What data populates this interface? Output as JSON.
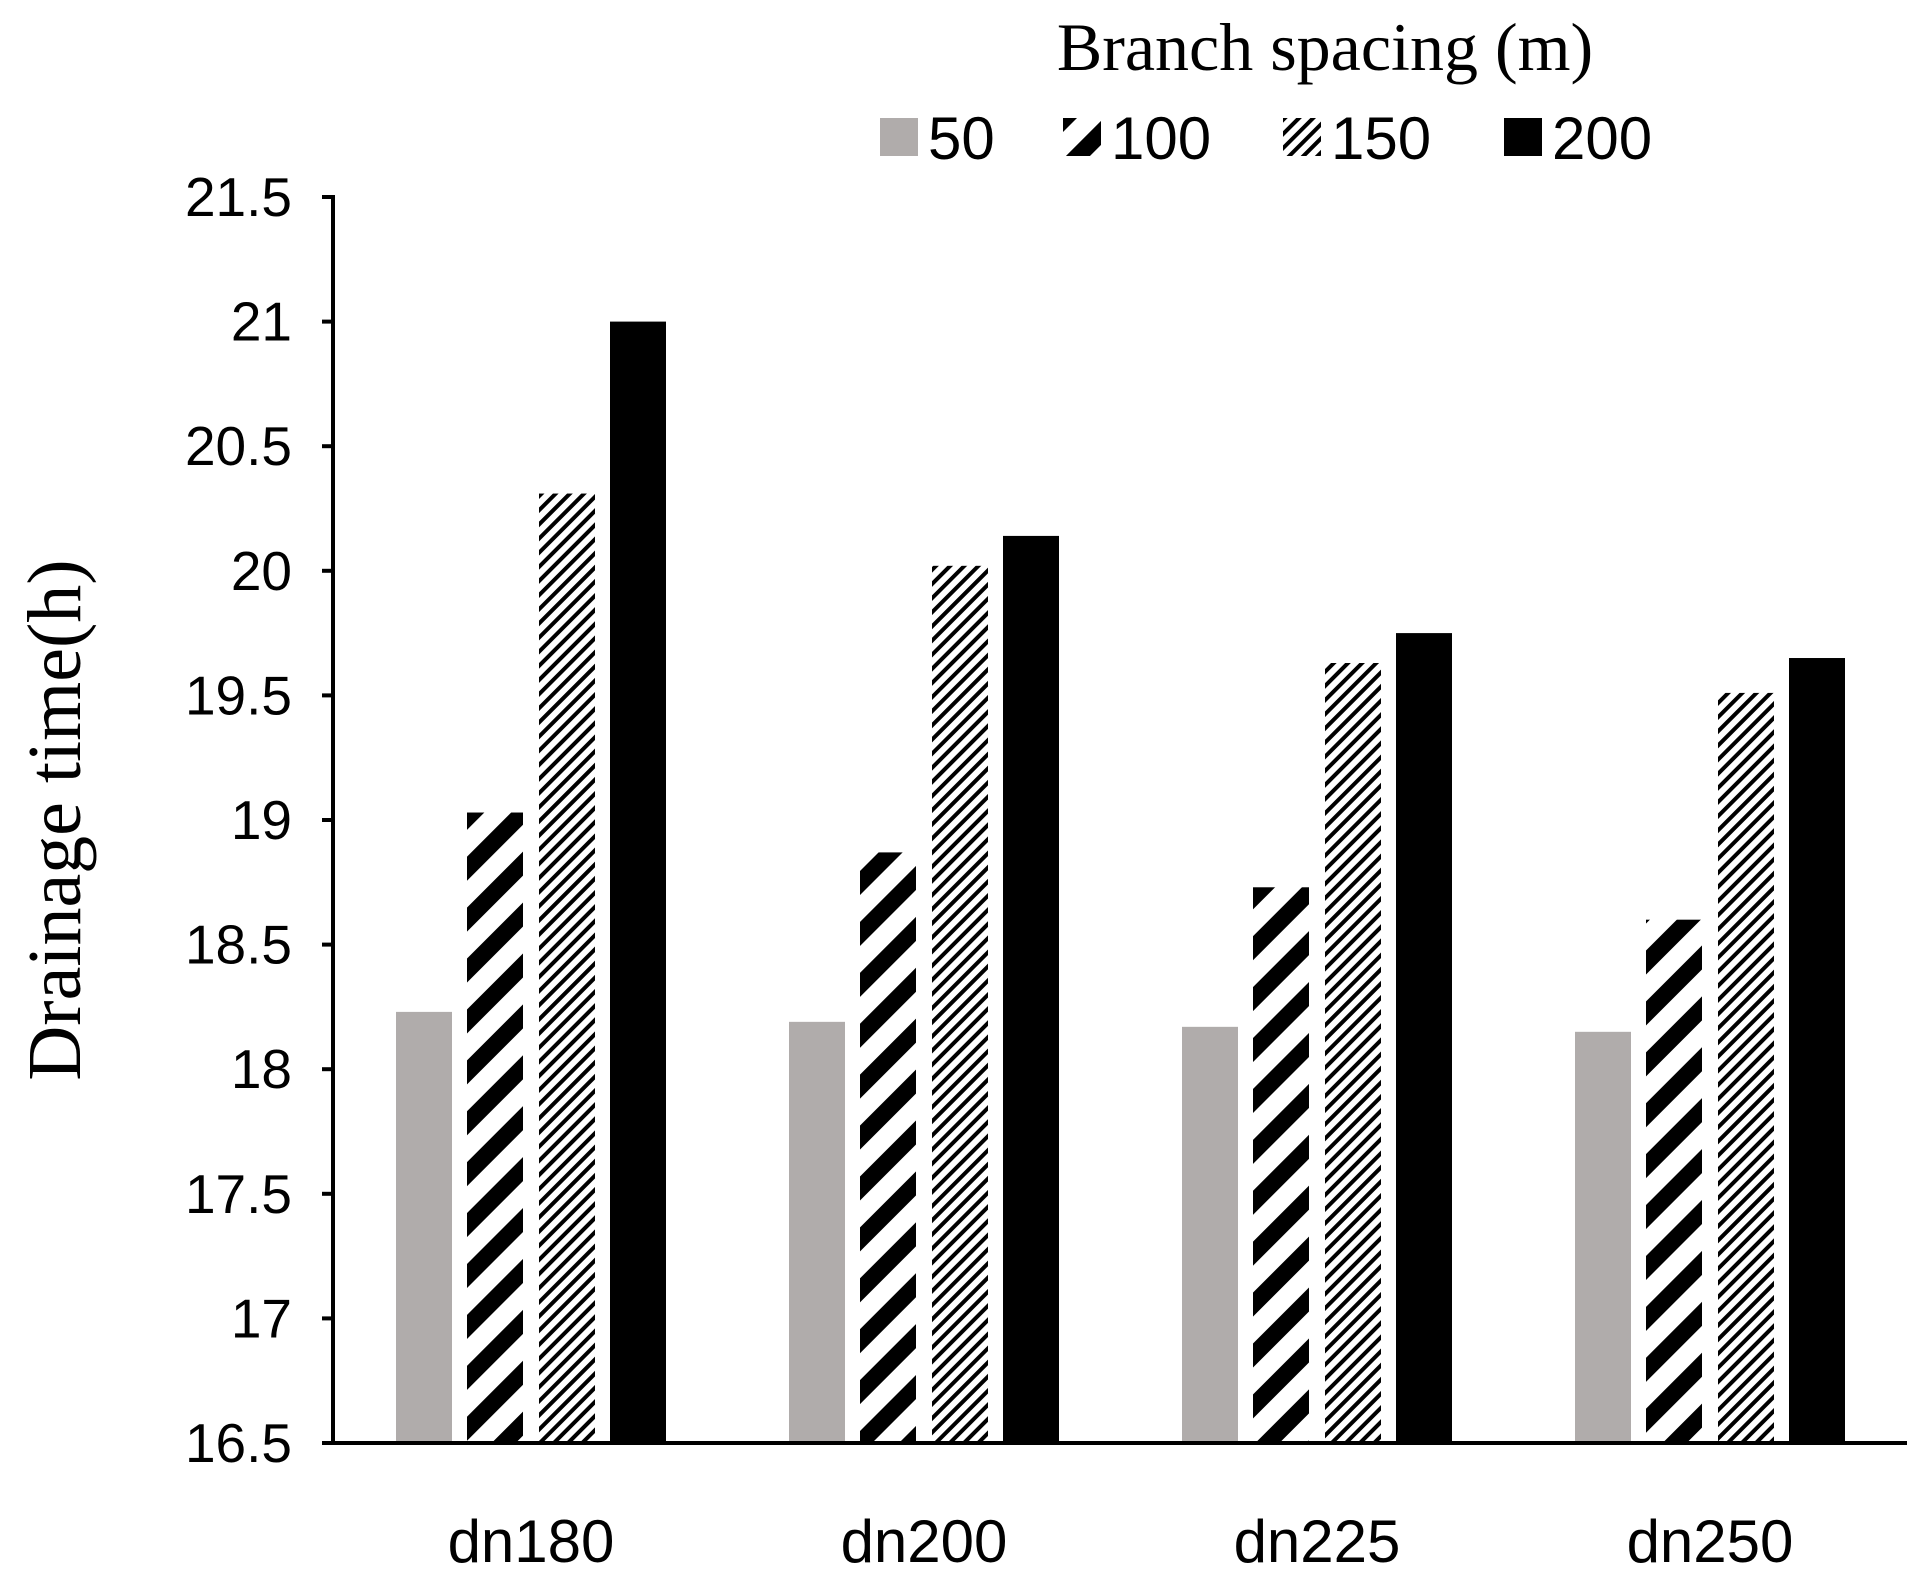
{
  "chart_data": {
    "type": "bar",
    "categories": [
      "dn180",
      "dn200",
      "dn225",
      "dn250"
    ],
    "series": [
      {
        "name": "50",
        "values": [
          18.23,
          18.19,
          18.17,
          18.15
        ],
        "fill": "#b0acab",
        "pattern": "solid"
      },
      {
        "name": "100",
        "values": [
          19.03,
          18.87,
          18.73,
          18.6
        ],
        "fill": "#000000",
        "pattern": "wide-diagonal"
      },
      {
        "name": "150",
        "values": [
          20.31,
          20.02,
          19.63,
          19.51
        ],
        "fill": "#000000",
        "pattern": "dense-diagonal"
      },
      {
        "name": "200",
        "values": [
          21.0,
          20.14,
          19.75,
          19.65
        ],
        "fill": "#000000",
        "pattern": "solid"
      }
    ],
    "legend_title": "Branch spacing (m)",
    "legend_position": "top",
    "xlabel": "",
    "ylabel": "Drainage time(h)",
    "ylim": [
      16.5,
      21.5
    ],
    "yticks": [
      "16.5",
      "17",
      "17.5",
      "18",
      "18.5",
      "19",
      "19.5",
      "20",
      "20.5",
      "21",
      "21.5"
    ],
    "grid": false
  }
}
